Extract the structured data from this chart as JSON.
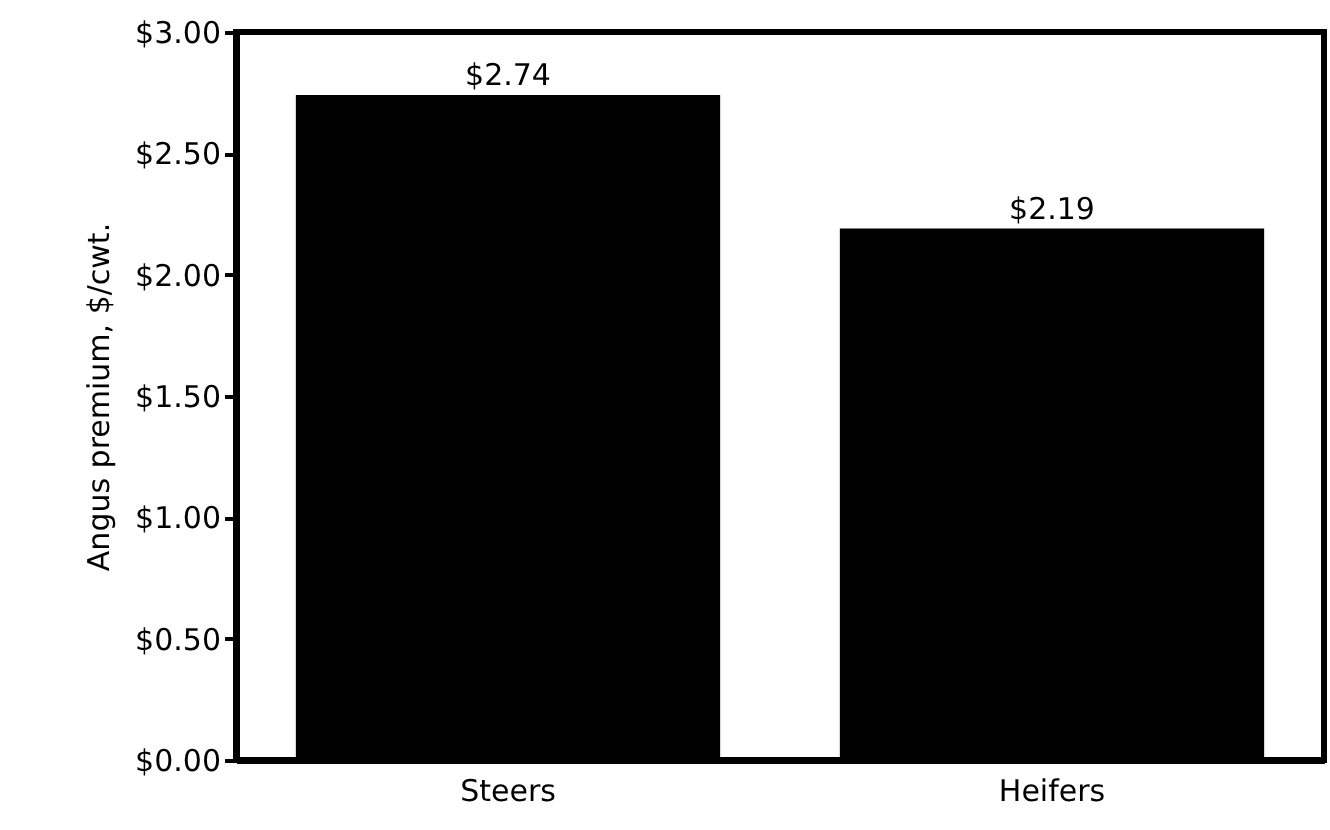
{
  "chart_data": {
    "type": "bar",
    "ylabel": "Angus premium, $/cwt.",
    "categories": [
      "Steers",
      "Heifers"
    ],
    "values": [
      2.74,
      2.19
    ],
    "value_labels": [
      "$2.74",
      "$2.19"
    ],
    "color": "#000000",
    "ylim": [
      0,
      3
    ],
    "yticks": [
      {
        "value": 0,
        "label": "$0.00"
      },
      {
        "value": 0.5,
        "label": "$0.50"
      },
      {
        "value": 1,
        "label": "$1.00"
      },
      {
        "value": 1.5,
        "label": "$1.50"
      },
      {
        "value": 2,
        "label": "$2.00"
      },
      {
        "value": 2.5,
        "label": "$2.50"
      },
      {
        "value": 3,
        "label": "$3.00"
      }
    ],
    "grid": false
  }
}
